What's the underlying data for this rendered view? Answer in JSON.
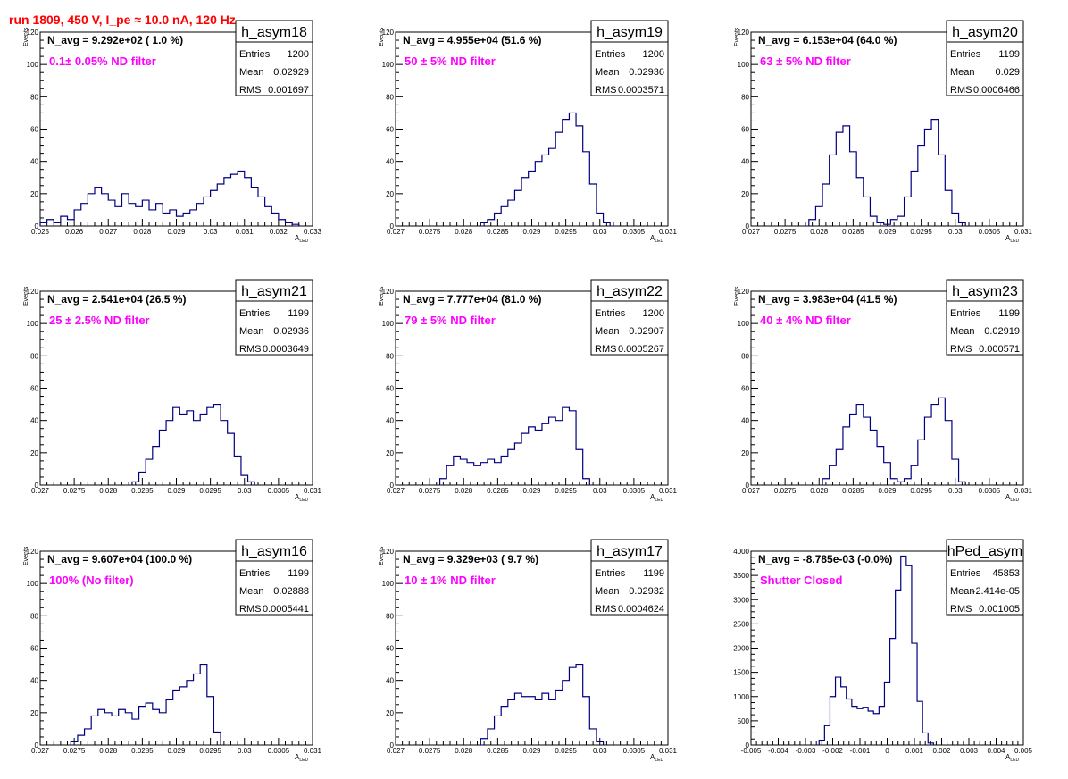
{
  "run_title": "run 1809,   450 V, I_pe ≈ 10.0 nA, 120 Hz",
  "colors": {
    "title": "#ff0000",
    "label": "#ff00ff",
    "line": "#000080",
    "axis": "#000000"
  },
  "chart_data": [
    {
      "type": "histogram",
      "name": "h_asym18",
      "xlabel": "A_LED",
      "ylabel": "Events",
      "xlim": [
        0.025,
        0.033
      ],
      "ylim": [
        0,
        120
      ],
      "xticks": [
        "0.025",
        "0.026",
        "0.027",
        "0.028",
        "0.029",
        "0.03",
        "0.031",
        "0.032",
        "0.033"
      ],
      "yticks": [
        "0",
        "20",
        "40",
        "60",
        "80",
        "100",
        "120"
      ],
      "navg": "N_avg = 9.292e+02 ( 1.0 %)",
      "label": "0.1± 0.05% ND filter",
      "stats": [
        [
          "Entries",
          "1200"
        ],
        [
          "Mean",
          "0.02929"
        ],
        [
          "RMS",
          "0.001697"
        ]
      ],
      "x": [
        0.0251,
        0.0253,
        0.0255,
        0.0257,
        0.0259,
        0.0261,
        0.0263,
        0.0265,
        0.0267,
        0.0269,
        0.0271,
        0.0273,
        0.0275,
        0.0277,
        0.0279,
        0.0281,
        0.0283,
        0.0285,
        0.0287,
        0.0289,
        0.0291,
        0.0293,
        0.0295,
        0.0297,
        0.0299,
        0.0301,
        0.0303,
        0.0305,
        0.0307,
        0.0309,
        0.0311,
        0.0313,
        0.0315,
        0.0317,
        0.0319,
        0.0321,
        0.0323,
        0.0325
      ],
      "y": [
        2,
        4,
        2,
        6,
        4,
        10,
        14,
        20,
        24,
        20,
        16,
        12,
        20,
        14,
        12,
        16,
        10,
        14,
        8,
        10,
        6,
        8,
        10,
        14,
        18,
        22,
        26,
        30,
        32,
        34,
        30,
        24,
        18,
        12,
        8,
        4,
        2,
        1
      ]
    },
    {
      "type": "histogram",
      "name": "h_asym19",
      "xlabel": "A_LED",
      "ylabel": "Events",
      "xlim": [
        0.027,
        0.031
      ],
      "ylim": [
        0,
        120
      ],
      "xticks": [
        "0.027",
        "0.0275",
        "0.028",
        "0.0285",
        "0.029",
        "0.0295",
        "0.03",
        "0.0305",
        "0.031"
      ],
      "yticks": [
        "0",
        "20",
        "40",
        "60",
        "80",
        "100",
        "120"
      ],
      "navg": "N_avg = 4.955e+04 (51.6 %)",
      "label": "50 ± 5% ND filter",
      "stats": [
        [
          "Entries",
          "1200"
        ],
        [
          "Mean",
          "0.02936"
        ],
        [
          "RMS",
          "0.0003571"
        ]
      ],
      "x": [
        0.0283,
        0.0284,
        0.0285,
        0.0286,
        0.0287,
        0.0288,
        0.0289,
        0.029,
        0.0291,
        0.0292,
        0.0293,
        0.0294,
        0.0295,
        0.0296,
        0.0297,
        0.0298,
        0.0299,
        0.03,
        0.0301
      ],
      "y": [
        2,
        4,
        8,
        12,
        16,
        22,
        30,
        34,
        40,
        44,
        48,
        58,
        66,
        70,
        62,
        46,
        26,
        8,
        2
      ]
    },
    {
      "type": "histogram",
      "name": "h_asym20",
      "xlabel": "A_LED",
      "ylabel": "Events",
      "xlim": [
        0.027,
        0.031
      ],
      "ylim": [
        0,
        120
      ],
      "xticks": [
        "0.027",
        "0.0275",
        "0.028",
        "0.0285",
        "0.029",
        "0.0295",
        "0.03",
        "0.0305",
        "0.031"
      ],
      "yticks": [
        "0",
        "20",
        "40",
        "60",
        "80",
        "100",
        "120"
      ],
      "navg": "N_avg = 6.153e+04 (64.0 %)",
      "label": "63 ± 5% ND filter",
      "stats": [
        [
          "Entries",
          "1199"
        ],
        [
          "Mean",
          "0.029"
        ],
        [
          "RMS",
          "0.0006466"
        ]
      ],
      "x": [
        0.0279,
        0.028,
        0.0281,
        0.0282,
        0.0283,
        0.0284,
        0.0285,
        0.0286,
        0.0287,
        0.0288,
        0.0289,
        0.029,
        0.0291,
        0.0292,
        0.0293,
        0.0294,
        0.0295,
        0.0296,
        0.0297,
        0.0298,
        0.0299,
        0.03,
        0.0301
      ],
      "y": [
        4,
        12,
        26,
        44,
        58,
        62,
        46,
        30,
        18,
        6,
        2,
        1,
        4,
        6,
        18,
        34,
        50,
        60,
        66,
        44,
        22,
        8,
        2
      ]
    },
    {
      "type": "histogram",
      "name": "h_asym21",
      "xlabel": "A_LED",
      "ylabel": "Events",
      "xlim": [
        0.027,
        0.031
      ],
      "ylim": [
        0,
        120
      ],
      "xticks": [
        "0.027",
        "0.0275",
        "0.028",
        "0.0285",
        "0.029",
        "0.0295",
        "0.03",
        "0.0305",
        "0.031"
      ],
      "yticks": [
        "0",
        "20",
        "40",
        "60",
        "80",
        "100",
        "120"
      ],
      "navg": "N_avg = 2.541e+04 (26.5 %)",
      "label": "25 ± 2.5% ND filter",
      "stats": [
        [
          "Entries",
          "1199"
        ],
        [
          "Mean",
          "0.02936"
        ],
        [
          "RMS",
          "0.0003649"
        ]
      ],
      "x": [
        0.0284,
        0.0285,
        0.0286,
        0.0287,
        0.0288,
        0.0289,
        0.029,
        0.0291,
        0.0292,
        0.0293,
        0.0294,
        0.0295,
        0.0296,
        0.0297,
        0.0298,
        0.0299,
        0.03,
        0.0301
      ],
      "y": [
        2,
        8,
        16,
        24,
        34,
        40,
        48,
        44,
        46,
        40,
        44,
        48,
        50,
        40,
        32,
        18,
        6,
        2
      ]
    },
    {
      "type": "histogram",
      "name": "h_asym22",
      "xlabel": "A_LED",
      "ylabel": "Events",
      "xlim": [
        0.027,
        0.031
      ],
      "ylim": [
        0,
        120
      ],
      "xticks": [
        "0.027",
        "0.0275",
        "0.028",
        "0.0285",
        "0.029",
        "0.0295",
        "0.03",
        "0.0305",
        "0.031"
      ],
      "yticks": [
        "0",
        "20",
        "40",
        "60",
        "80",
        "100",
        "120"
      ],
      "navg": "N_avg = 7.777e+04 (81.0 %)",
      "label": "79 ± 5% ND filter",
      "stats": [
        [
          "Entries",
          "1200"
        ],
        [
          "Mean",
          "0.02907"
        ],
        [
          "RMS",
          "0.0005267"
        ]
      ],
      "x": [
        0.0277,
        0.0278,
        0.0279,
        0.028,
        0.0281,
        0.0282,
        0.0283,
        0.0284,
        0.0285,
        0.0286,
        0.0287,
        0.0288,
        0.0289,
        0.029,
        0.0291,
        0.0292,
        0.0293,
        0.0294,
        0.0295,
        0.0296,
        0.0297,
        0.0298
      ],
      "y": [
        4,
        12,
        18,
        16,
        14,
        12,
        14,
        16,
        14,
        18,
        22,
        26,
        32,
        36,
        34,
        38,
        42,
        40,
        48,
        46,
        22,
        4
      ]
    },
    {
      "type": "histogram",
      "name": "h_asym23",
      "xlabel": "A_LED",
      "ylabel": "Events",
      "xlim": [
        0.027,
        0.031
      ],
      "ylim": [
        0,
        120
      ],
      "xticks": [
        "0.027",
        "0.0275",
        "0.028",
        "0.0285",
        "0.029",
        "0.0295",
        "0.03",
        "0.0305",
        "0.031"
      ],
      "yticks": [
        "0",
        "20",
        "40",
        "60",
        "80",
        "100",
        "120"
      ],
      "navg": "N_avg = 3.983e+04 (41.5 %)",
      "label": "40 ± 4% ND filter",
      "stats": [
        [
          "Entries",
          "1199"
        ],
        [
          "Mean",
          "0.02919"
        ],
        [
          "RMS",
          "0.000571"
        ]
      ],
      "x": [
        0.0281,
        0.0282,
        0.0283,
        0.0284,
        0.0285,
        0.0286,
        0.0287,
        0.0288,
        0.0289,
        0.029,
        0.0291,
        0.0292,
        0.0293,
        0.0294,
        0.0295,
        0.0296,
        0.0297,
        0.0298,
        0.0299,
        0.03,
        0.0301
      ],
      "y": [
        4,
        12,
        22,
        36,
        44,
        50,
        42,
        34,
        24,
        14,
        4,
        2,
        4,
        12,
        28,
        42,
        50,
        54,
        40,
        16,
        2
      ]
    },
    {
      "type": "histogram",
      "name": "h_asym16",
      "xlabel": "A_LED",
      "ylabel": "Events",
      "xlim": [
        0.027,
        0.031
      ],
      "ylim": [
        0,
        120
      ],
      "xticks": [
        "0.027",
        "0.0275",
        "0.028",
        "0.0285",
        "0.029",
        "0.0295",
        "0.03",
        "0.0305",
        "0.031"
      ],
      "yticks": [
        "0",
        "20",
        "40",
        "60",
        "80",
        "100",
        "120"
      ],
      "navg": "N_avg = 9.607e+04 (100.0 %)",
      "label": "100% (No filter)",
      "stats": [
        [
          "Entries",
          "1199"
        ],
        [
          "Mean",
          "0.02888"
        ],
        [
          "RMS",
          "0.0005441"
        ]
      ],
      "x": [
        0.0275,
        0.0276,
        0.0277,
        0.0278,
        0.0279,
        0.028,
        0.0281,
        0.0282,
        0.0283,
        0.0284,
        0.0285,
        0.0286,
        0.0287,
        0.0288,
        0.0289,
        0.029,
        0.0291,
        0.0292,
        0.0293,
        0.0294,
        0.0295,
        0.0296
      ],
      "y": [
        2,
        6,
        10,
        18,
        22,
        20,
        18,
        22,
        20,
        16,
        24,
        26,
        22,
        20,
        28,
        34,
        36,
        40,
        44,
        50,
        30,
        8
      ]
    },
    {
      "type": "histogram",
      "name": "h_asym17",
      "xlabel": "A_LED",
      "ylabel": "Events",
      "xlim": [
        0.027,
        0.031
      ],
      "ylim": [
        0,
        120
      ],
      "xticks": [
        "0.027",
        "0.0275",
        "0.028",
        "0.0285",
        "0.029",
        "0.0295",
        "0.03",
        "0.0305",
        "0.031"
      ],
      "yticks": [
        "0",
        "20",
        "40",
        "60",
        "80",
        "100",
        "120"
      ],
      "navg": "N_avg = 9.329e+03 ( 9.7 %)",
      "label": "10 ± 1% ND filter",
      "stats": [
        [
          "Entries",
          "1199"
        ],
        [
          "Mean",
          "0.02932"
        ],
        [
          "RMS",
          "0.0004624"
        ]
      ],
      "x": [
        0.0283,
        0.0284,
        0.0285,
        0.0286,
        0.0287,
        0.0288,
        0.0289,
        0.029,
        0.0291,
        0.0292,
        0.0293,
        0.0294,
        0.0295,
        0.0296,
        0.0297,
        0.0298,
        0.0299,
        0.03
      ],
      "y": [
        4,
        10,
        18,
        24,
        28,
        32,
        30,
        30,
        28,
        32,
        28,
        34,
        40,
        48,
        50,
        30,
        10,
        2
      ]
    },
    {
      "type": "histogram",
      "name": "hPed_asym",
      "xlabel": "A_LED",
      "ylabel": "",
      "xlim": [
        -0.005,
        0.005
      ],
      "ylim": [
        0,
        4000
      ],
      "xticks": [
        "-0.005",
        "-0.004",
        "-0.003",
        "-0.002",
        "-0.001",
        "0",
        "0.001",
        "0.002",
        "0.003",
        "0.004",
        "0.005"
      ],
      "yticks": [
        "0",
        "500",
        "1000",
        "1500",
        "2000",
        "2500",
        "3000",
        "3500",
        "4000"
      ],
      "navg": "N_avg = -8.785e-03 (-0.0%)",
      "label": "Shutter Closed",
      "stats": [
        [
          "Entries",
          "45853"
        ],
        [
          "Mean",
          "-2.414e-05"
        ],
        [
          "RMS",
          "0.001005"
        ]
      ],
      "x": [
        -0.0024,
        -0.0022,
        -0.002,
        -0.0018,
        -0.0016,
        -0.0014,
        -0.0012,
        -0.001,
        -0.0008,
        -0.0006,
        -0.0004,
        -0.0002,
        0.0,
        0.0002,
        0.0004,
        0.0006,
        0.0008,
        0.001,
        0.0012,
        0.0014,
        0.0016
      ],
      "y": [
        100,
        400,
        1000,
        1400,
        1200,
        950,
        800,
        750,
        780,
        700,
        650,
        800,
        1300,
        2200,
        3200,
        3900,
        3700,
        2100,
        900,
        250,
        40
      ]
    }
  ]
}
